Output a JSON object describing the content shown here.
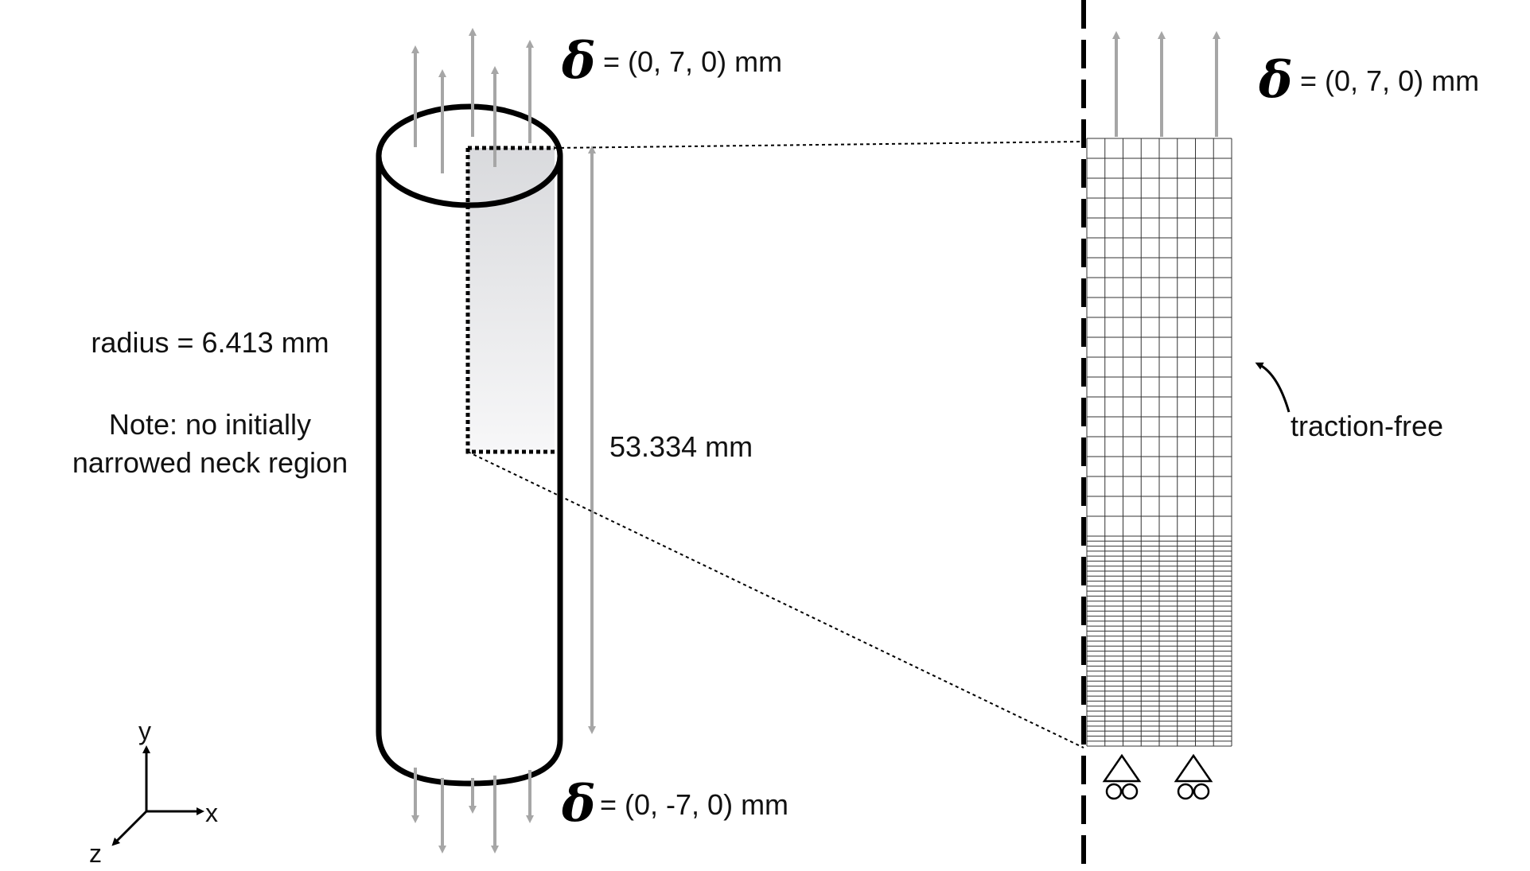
{
  "top_load": {
    "symbol": "δ",
    "value": "= (0, 7, 0) mm"
  },
  "bottom_load": {
    "symbol": "δ",
    "value": "= (0, -7, 0) mm"
  },
  "mesh_load": {
    "symbol": "δ",
    "value": "= (0, 7, 0) mm"
  },
  "radius_label": "radius = 6.413 mm",
  "note_line1": "Note: no initially",
  "note_line2": "narrowed neck region",
  "length_label": "53.334 mm",
  "traction_label": "traction-free",
  "axes": {
    "x": "x",
    "y": "y",
    "z": "z"
  },
  "mesh": {
    "columns": 8,
    "coarse_rows": 20,
    "fine_rows": 42
  },
  "colors": {
    "arrow": "#a6a6a6",
    "outline": "#000000",
    "shade_top": "#dcdde0",
    "shade_bottom": "#f6f6f7"
  }
}
